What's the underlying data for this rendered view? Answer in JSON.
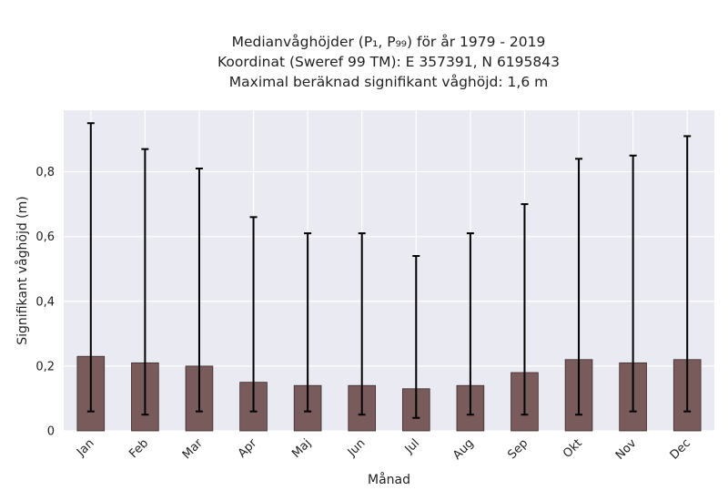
{
  "chart_data": {
    "type": "bar",
    "title_lines": [
      "Medianvåghöjder (P₁, P₉₉) för år 1979 - 2019",
      "Koordinat (Sweref 99 TM): E 357391, N 6195843",
      "Maximal beräknad signifikant våghöjd: 1,6 m"
    ],
    "xlabel": "Månad",
    "ylabel": "Signifikant våghöjd (m)",
    "categories": [
      "Jan",
      "Feb",
      "Mar",
      "Apr",
      "Maj",
      "Jun",
      "Jul",
      "Aug",
      "Sep",
      "Okt",
      "Nov",
      "Dec"
    ],
    "values": [
      0.23,
      0.21,
      0.2,
      0.15,
      0.14,
      0.14,
      0.13,
      0.14,
      0.18,
      0.22,
      0.21,
      0.22
    ],
    "p1": [
      0.06,
      0.05,
      0.06,
      0.06,
      0.06,
      0.05,
      0.04,
      0.05,
      0.05,
      0.05,
      0.06,
      0.06
    ],
    "p99": [
      0.95,
      0.87,
      0.81,
      0.66,
      0.61,
      0.61,
      0.54,
      0.61,
      0.7,
      0.84,
      0.85,
      0.91
    ],
    "ylim": [
      0,
      0.99
    ],
    "yticks": [
      0,
      0.2,
      0.4,
      0.6,
      0.8
    ],
    "ytick_labels": [
      "0",
      "0,2",
      "0,4",
      "0,6",
      "0,8"
    ],
    "grid": true,
    "colors": {
      "bar": "#7a5b5b",
      "bar_edge": "#3a2a2a",
      "error": "#000000",
      "plot_bg": "#eaeaf2",
      "grid": "#ffffff"
    }
  }
}
